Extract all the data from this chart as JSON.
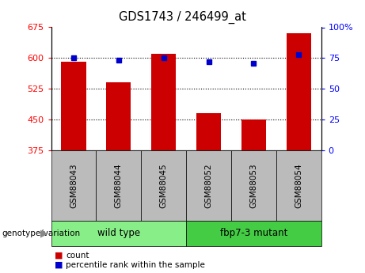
{
  "title": "GDS1743 / 246499_at",
  "categories": [
    "GSM88043",
    "GSM88044",
    "GSM88045",
    "GSM88052",
    "GSM88053",
    "GSM88054"
  ],
  "bar_values": [
    590,
    540,
    610,
    465,
    450,
    660
  ],
  "percentile_values": [
    75,
    73,
    75,
    72,
    71,
    78
  ],
  "bar_color": "#cc0000",
  "dot_color": "#0000cc",
  "ylim_left": [
    375,
    675
  ],
  "ylim_right": [
    0,
    100
  ],
  "yticks_left": [
    375,
    450,
    525,
    600,
    675
  ],
  "yticks_right": [
    0,
    25,
    50,
    75,
    100
  ],
  "ytick_labels_right": [
    "0",
    "25",
    "50",
    "75",
    "100%"
  ],
  "grid_values": [
    450,
    525,
    600
  ],
  "group1": {
    "label": "wild type",
    "indices": [
      0,
      1,
      2
    ],
    "color": "#88ee88"
  },
  "group2": {
    "label": "fbp7-3 mutant",
    "indices": [
      3,
      4,
      5
    ],
    "color": "#44cc44"
  },
  "genotype_label": "genotype/variation",
  "legend_count": "count",
  "legend_percentile": "percentile rank within the sample",
  "bar_width": 0.55,
  "background_color": "#ffffff",
  "plot_bg_color": "#ffffff",
  "tick_bg_color": "#bbbbbb"
}
